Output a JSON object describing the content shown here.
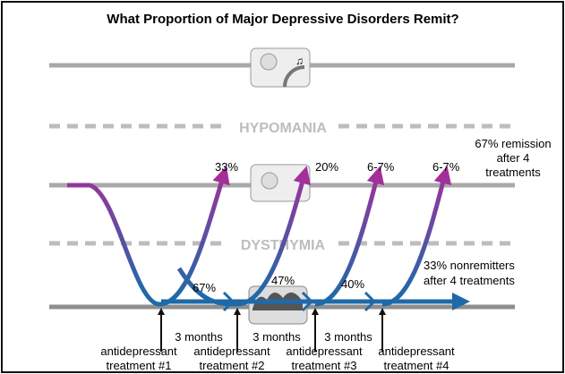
{
  "title": "What Proportion of Major Depressive Disorders Remit?",
  "states": {
    "hypomania": "HYPOMANIA",
    "dysthymia": "DYSTHYMIA"
  },
  "remission_rates": [
    "33%",
    "20%",
    "6-7%",
    "6-7%"
  ],
  "nonremit_rates": [
    "67%",
    "47%",
    "40%"
  ],
  "summary_remission": [
    "67% remission",
    "after 4",
    "treatments"
  ],
  "summary_nonremit": [
    "33% nonremitters",
    "after 4 treatments"
  ],
  "intervals": [
    "3 months",
    "3 months",
    "3 months"
  ],
  "treatments": [
    {
      "line1": "antidepressant",
      "line2": "treatment #1"
    },
    {
      "line1": "antidepressant",
      "line2": "treatment #2"
    },
    {
      "line1": "antidepressant",
      "line2": "treatment #3"
    },
    {
      "line1": "antidepressant",
      "line2": "treatment #4"
    }
  ],
  "colors": {
    "magenta": "#a3309a",
    "blue": "#1e6aa8",
    "gray": "#a9a9a9",
    "dash": "#bdbdbd"
  }
}
